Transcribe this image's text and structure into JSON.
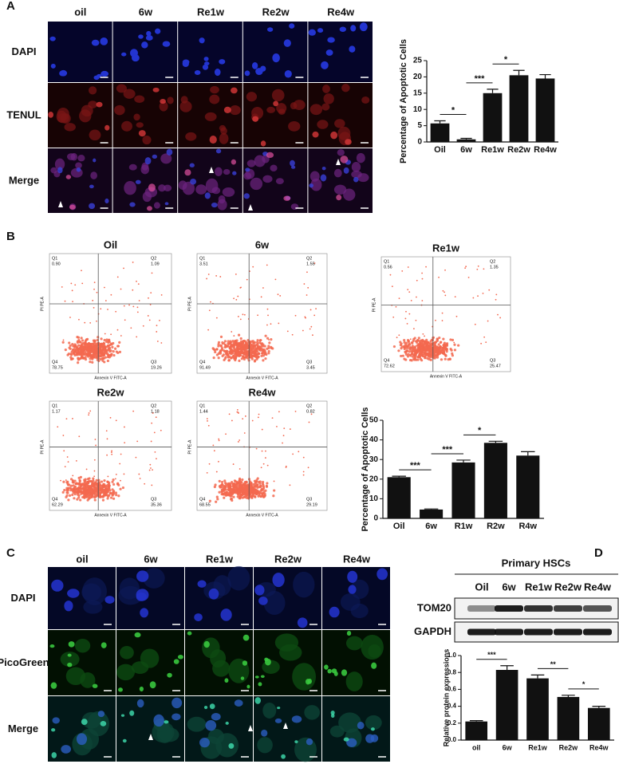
{
  "panels": {
    "A": {
      "label": "A",
      "columns": [
        "oil",
        "6w",
        "Re1w",
        "Re2w",
        "Re4w"
      ],
      "rows": [
        "DAPI",
        "TENUL",
        "Merge"
      ]
    },
    "B": {
      "label": "B",
      "y_axis_label": "PI PE-A",
      "x_axis_label": "Annexin V FITC-A",
      "plots": [
        {
          "title": "Oil",
          "quadrants": [
            {
              "name": "Q1",
              "value": "0.90"
            },
            {
              "name": "Q2",
              "value": "1.09"
            },
            {
              "name": "Q3",
              "value": "19.26"
            },
            {
              "name": "Q4",
              "value": "78.75"
            }
          ]
        },
        {
          "title": "6w",
          "quadrants": [
            {
              "name": "Q1",
              "value": "3.51"
            },
            {
              "name": "Q2",
              "value": "1.55"
            },
            {
              "name": "Q3",
              "value": "3.45"
            },
            {
              "name": "Q4",
              "value": "91.49"
            }
          ]
        },
        {
          "title": "Re1w",
          "quadrants": [
            {
              "name": "Q1",
              "value": "0.56"
            },
            {
              "name": "Q2",
              "value": "1.35"
            },
            {
              "name": "Q3",
              "value": "25.47"
            },
            {
              "name": "Q4",
              "value": "72.62"
            }
          ]
        },
        {
          "title": "Re2w",
          "quadrants": [
            {
              "name": "Q1",
              "value": "1.17"
            },
            {
              "name": "Q2",
              "value": "1.18"
            },
            {
              "name": "Q3",
              "value": "35.36"
            },
            {
              "name": "Q4",
              "value": "62.29"
            }
          ]
        },
        {
          "title": "Re4w",
          "quadrants": [
            {
              "name": "Q1",
              "value": "1.44"
            },
            {
              "name": "Q2",
              "value": "0.82"
            },
            {
              "name": "Q3",
              "value": "29.19"
            },
            {
              "name": "Q4",
              "value": "68.55"
            }
          ]
        }
      ]
    },
    "C": {
      "label": "C",
      "columns": [
        "oil",
        "6w",
        "Re1w",
        "Re2w",
        "Re4w"
      ],
      "rows": [
        "DAPI",
        "PicoGreen",
        "Merge"
      ]
    },
    "D": {
      "label": "D",
      "title": "Primary HSCs",
      "lanes": [
        "Oil",
        "6w",
        "Re1w",
        "Re2w",
        "Re4w"
      ],
      "bands": [
        "TOM20",
        "GAPDH"
      ]
    }
  },
  "chart_data": [
    {
      "type": "bar",
      "y_label": "Percentage of Apoptotic Cells",
      "color": "#111111",
      "categories": [
        "Oil",
        "6w",
        "Re1w",
        "Re2w",
        "Re4w"
      ],
      "values": [
        5.7,
        0.8,
        15,
        20.5,
        19.5
      ],
      "errors": [
        0.8,
        0.3,
        1.2,
        1.5,
        1.2
      ],
      "ylim": [
        0,
        25
      ],
      "yticks": [
        0,
        5,
        10,
        15,
        20,
        25
      ],
      "significance": [
        {
          "label": "*",
          "pair": [
            "Oil",
            "6w"
          ]
        },
        {
          "label": "***",
          "pair": [
            "6w",
            "Re1w"
          ]
        },
        {
          "label": "*",
          "pair": [
            "Re1w",
            "Re2w"
          ]
        }
      ]
    },
    {
      "type": "bar",
      "y_label": "Percentage of Apoptotic Cells",
      "color": "#111111",
      "categories": [
        "Oil",
        "6w",
        "R1w",
        "R2w",
        "R4w"
      ],
      "values": [
        21,
        4.5,
        28.5,
        38.5,
        32
      ],
      "errors": [
        0.5,
        0.3,
        1.2,
        0.8,
        2
      ],
      "ylim": [
        0,
        50
      ],
      "yticks": [
        0,
        10,
        20,
        30,
        40,
        50
      ],
      "significance": [
        {
          "label": "***",
          "pair": [
            "Oil",
            "6w"
          ]
        },
        {
          "label": "***",
          "pair": [
            "6w",
            "R1w"
          ]
        },
        {
          "label": "*",
          "pair": [
            "R1w",
            "R2w"
          ]
        }
      ]
    },
    {
      "type": "bar",
      "y_label": "Relative protein expressions",
      "color": "#111111",
      "categories": [
        "oil",
        "6w",
        "Re1w",
        "Re2w",
        "Re4w"
      ],
      "values": [
        0.22,
        0.83,
        0.73,
        0.51,
        0.38
      ],
      "errors": [
        0.01,
        0.05,
        0.04,
        0.02,
        0.02
      ],
      "ylim": [
        0,
        1
      ],
      "yticks": [
        {
          "value": 0,
          "label": "0.0"
        },
        {
          "value": 0.2,
          "label": "0.2"
        },
        {
          "value": 0.4,
          "label": "0.4"
        },
        {
          "value": 0.6,
          "label": "0.6"
        },
        {
          "value": 0.8,
          "label": "0.8"
        },
        {
          "value": 1,
          "label": "1.0"
        }
      ],
      "significance": [
        {
          "label": "***",
          "pair": [
            "oil",
            "6w"
          ]
        },
        {
          "label": "**",
          "pair": [
            "Re1w",
            "Re2w"
          ]
        },
        {
          "label": "*",
          "pair": [
            "Re2w",
            "Re4w"
          ]
        }
      ]
    }
  ]
}
